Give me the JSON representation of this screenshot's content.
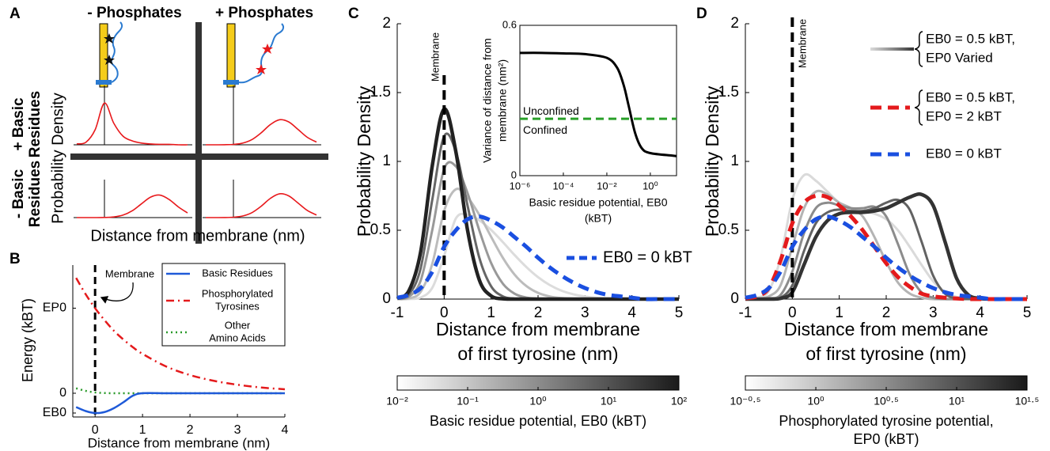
{
  "chart_data": [
    {
      "type": "line",
      "label": "A",
      "column_titles": [
        "- Phosphates",
        "+ Phosphates"
      ],
      "row_titles": [
        [
          "+ Basic",
          "Residues"
        ],
        [
          "- Basic",
          "Residues"
        ]
      ],
      "ylabel": "Probability Density",
      "xlabel": "Distance from membrane (nm)",
      "xlim": [
        -1.5,
        4.5
      ],
      "ylim": [
        0,
        1
      ],
      "vline": 0,
      "color": "#e8191c",
      "x": [
        -1.5,
        -1,
        -0.5,
        0,
        0.5,
        1,
        1.5,
        2,
        2.5,
        3,
        3.5,
        4,
        4.5
      ],
      "plots": [
        {
          "values": [
            0.02,
            0.06,
            0.35,
            0.96,
            0.5,
            0.2,
            0.09,
            0.04,
            0.02,
            0.01,
            0.01,
            0,
            0
          ]
        },
        {
          "values": [
            0,
            0,
            0.002,
            0.009,
            0.038,
            0.119,
            0.274,
            0.465,
            0.576,
            0.525,
            0.352,
            0.173,
            0.062
          ]
        },
        {
          "values": [
            0,
            0,
            0,
            0.003,
            0.015,
            0.056,
            0.155,
            0.315,
            0.47,
            0.517,
            0.417,
            0.246,
            0.107
          ]
        },
        {
          "values": [
            0,
            0,
            0.001,
            0.009,
            0.036,
            0.113,
            0.26,
            0.441,
            0.546,
            0.498,
            0.334,
            0.164,
            0.059
          ]
        }
      ]
    },
    {
      "type": "line",
      "label": "B",
      "ylabel": "Energy (kBT)",
      "xlabel": "Distance from membrane (nm)",
      "xlim": [
        -0.47,
        4
      ],
      "ylim": [
        -1.2,
        6.48
      ],
      "xticks": [
        0,
        1,
        2,
        3,
        4
      ],
      "yticks": [
        {
          "value": -1,
          "label": "EB0"
        },
        0,
        {
          "value": 4.3,
          "label": "EP0"
        }
      ],
      "vline": 0,
      "annotation": "Membrane",
      "x": [
        -0.4,
        -0.2,
        0,
        0.2,
        0.4,
        0.6,
        0.8,
        1,
        1.5,
        2,
        2.5,
        3,
        3.5,
        4
      ],
      "series": [
        {
          "name": [
            "Basic Residues"
          ],
          "color": "#1f5ad8",
          "linestyle": "solid",
          "values": [
            -0.7,
            -0.9,
            -1,
            -0.95,
            -0.75,
            -0.45,
            -0.12,
            0,
            0,
            0,
            0,
            0,
            0,
            0
          ]
        },
        {
          "name": [
            "Phosphorylated",
            "Tyrosines"
          ],
          "color": "#e41a1c",
          "linestyle": "dashdot",
          "values": [
            5.83,
            5.01,
            4.3,
            3.69,
            3.15,
            2.71,
            2.32,
            1.99,
            1.35,
            0.92,
            0.63,
            0.43,
            0.29,
            0.2
          ]
        },
        {
          "name": [
            "Other",
            "Amino Acids"
          ],
          "color": "#2a9a2a",
          "linestyle": "dotted",
          "values": [
            0.25,
            0.12,
            0.04,
            0.01,
            0,
            0,
            0,
            0,
            0,
            0,
            0,
            0,
            0,
            0
          ]
        }
      ]
    },
    {
      "type": "line",
      "label": "C",
      "ylabel": "Probability Density",
      "xlabel": [
        "Distance from membrane",
        "of first tyrosine (nm)"
      ],
      "xlim": [
        -1,
        5
      ],
      "ylim": [
        0,
        2
      ],
      "xticks": [
        -1,
        0,
        1,
        2,
        3,
        4,
        5
      ],
      "yticks": [
        0,
        0.5,
        1,
        1.5,
        2
      ],
      "vline": 0,
      "annotation": "Membrane",
      "x": [
        -1,
        -0.75,
        -0.5,
        -0.25,
        0,
        0.25,
        0.5,
        0.75,
        1,
        1.25,
        1.5,
        1.75,
        2,
        2.25,
        2.5,
        2.75,
        3,
        3.25,
        3.5,
        3.75,
        4,
        4.25,
        4.5,
        4.75,
        5
      ],
      "family": {
        "colors": [
          "#dcdcdc",
          "#bcbcbc",
          "#999999",
          "#666666",
          "#222222"
        ],
        "values": [
          [
            0,
            0.001,
            0.011,
            0.084,
            0.314,
            0.586,
            0.613,
            0.572,
            0.502,
            0.414,
            0.32,
            0.233,
            0.159,
            0.102,
            0.061,
            0.035,
            0.019,
            0.009,
            0.004,
            0.002,
            0.001,
            0,
            0,
            0,
            0
          ],
          [
            0,
            0.005,
            0.053,
            0.26,
            0.641,
            0.798,
            0.738,
            0.611,
            0.453,
            0.3,
            0.178,
            0.095,
            0.045,
            0.019,
            0.007,
            0.003,
            0.001,
            0,
            0,
            0,
            0,
            0,
            0,
            0,
            0
          ],
          [
            0.001,
            0.018,
            0.135,
            0.507,
            0.946,
            0.964,
            0.768,
            0.498,
            0.262,
            0.112,
            0.039,
            0.011,
            0.003,
            0.001,
            0,
            0,
            0,
            0,
            0,
            0,
            0,
            0,
            0,
            0,
            0
          ],
          [
            0.003,
            0.034,
            0.224,
            0.728,
            1.183,
            1.071,
            0.676,
            0.299,
            0.093,
            0.02,
            0.003,
            0,
            0,
            0,
            0,
            0,
            0,
            0,
            0,
            0,
            0,
            0,
            0,
            0,
            0
          ],
          [
            0.005,
            0.061,
            0.344,
            0.975,
            1.38,
            1.069,
            0.497,
            0.138,
            0.023,
            0.002,
            0,
            0,
            0,
            0,
            0,
            0,
            0,
            0,
            0,
            0,
            0,
            0,
            0,
            0,
            0
          ]
        ]
      },
      "series": [
        {
          "name": "EB0 = 0 kBT",
          "color": "#1a4fe0",
          "linestyle": "dashed",
          "values": [
            0.01,
            0.03,
            0.08,
            0.2,
            0.38,
            0.5,
            0.58,
            0.6,
            0.57,
            0.52,
            0.45,
            0.38,
            0.3,
            0.23,
            0.17,
            0.12,
            0.08,
            0.05,
            0.03,
            0.02,
            0.01,
            0,
            0,
            0,
            0
          ]
        }
      ],
      "inset": {
        "type": "line",
        "log_x": true,
        "xlim": [
          1e-06,
          16
        ],
        "ylim": [
          0,
          0.6
        ],
        "xticks": [
          {
            "value": 1e-06,
            "label": "10⁻⁶"
          },
          {
            "value": 0.0001,
            "label": "10⁻⁴"
          },
          {
            "value": 0.01,
            "label": "10⁻²"
          },
          {
            "value": 1,
            "label": "10⁰"
          }
        ],
        "yticks": [
          0,
          0.6
        ],
        "ylabel": [
          "Variance of distance from",
          "membrane (nm²)"
        ],
        "xlabel": [
          "Basic residue potential, EB0",
          "(kBT)"
        ],
        "x": [
          1e-06,
          1e-05,
          0.0001,
          0.001,
          0.01,
          0.03,
          0.06,
          0.1,
          0.2,
          0.4,
          1,
          10,
          16
        ],
        "values": [
          0.49,
          0.49,
          0.488,
          0.485,
          0.47,
          0.43,
          0.36,
          0.28,
          0.17,
          0.11,
          0.09,
          0.08,
          0.078
        ],
        "color": "#000000",
        "hline": {
          "value": 0.227,
          "color": "#2aa02a"
        },
        "annotations": [
          "Unconfined",
          "Confined"
        ]
      },
      "colorbar": {
        "log": true,
        "lim": [
          0.01,
          100
        ],
        "colormap": [
          "#ffffff",
          "#1a1a1a"
        ],
        "ticks": [
          {
            "value": 0.01,
            "label": "10⁻²"
          },
          {
            "value": 0.1,
            "label": "10⁻¹"
          },
          {
            "value": 1,
            "label": "10⁰"
          },
          {
            "value": 10,
            "label": "10¹"
          },
          {
            "value": 100,
            "label": "10²"
          }
        ],
        "label": [
          "Basic residue potential, EB0 (kBT)"
        ]
      }
    },
    {
      "type": "line",
      "label": "D",
      "ylabel": "Probability Density",
      "xlabel": [
        "Distance from membrane",
        "of first tyrosine (nm)"
      ],
      "xlim": [
        -1,
        5
      ],
      "ylim": [
        0,
        2
      ],
      "xticks": [
        -1,
        0,
        1,
        2,
        3,
        4,
        5
      ],
      "yticks": [
        0,
        0.5,
        1,
        1.5,
        2
      ],
      "vline": 0,
      "annotation": "Membrane",
      "x": [
        -1,
        -0.75,
        -0.5,
        -0.25,
        0,
        0.25,
        0.5,
        0.75,
        1,
        1.25,
        1.5,
        1.75,
        2,
        2.25,
        2.5,
        2.75,
        3,
        3.25,
        3.5,
        3.75,
        4,
        4.25,
        4.5,
        4.75,
        5
      ],
      "family": {
        "name": [
          "EB0 = 0.5 kBT,",
          "EP0 Varied"
        ],
        "colors": [
          "#dadada",
          "#b4b4b4",
          "#8c8c8c",
          "#626262",
          "#333333"
        ],
        "values": [
          [
            0.002,
            0.01,
            0.06,
            0.3,
            0.72,
            0.9,
            0.86,
            0.78,
            0.7,
            0.66,
            0.64,
            0.62,
            0.58,
            0.5,
            0.38,
            0.25,
            0.13,
            0.05,
            0.015,
            0.003,
            0,
            0,
            0,
            0,
            0
          ],
          [
            0,
            0.002,
            0.02,
            0.1,
            0.38,
            0.66,
            0.78,
            0.76,
            0.7,
            0.66,
            0.6,
            0.45,
            0.27,
            0.12,
            0.04,
            0.01,
            0,
            0,
            0,
            0,
            0,
            0,
            0,
            0,
            0
          ],
          [
            0,
            0,
            0.005,
            0.03,
            0.2,
            0.48,
            0.66,
            0.7,
            0.68,
            0.66,
            0.66,
            0.67,
            0.6,
            0.4,
            0.18,
            0.05,
            0.01,
            0,
            0,
            0,
            0,
            0,
            0,
            0,
            0
          ],
          [
            0,
            0,
            0,
            0.01,
            0.1,
            0.35,
            0.55,
            0.63,
            0.65,
            0.64,
            0.64,
            0.66,
            0.7,
            0.72,
            0.65,
            0.42,
            0.17,
            0.04,
            0.005,
            0,
            0,
            0,
            0,
            0,
            0
          ],
          [
            0,
            0,
            0,
            0.005,
            0.05,
            0.25,
            0.45,
            0.57,
            0.62,
            0.63,
            0.63,
            0.64,
            0.66,
            0.7,
            0.74,
            0.76,
            0.68,
            0.42,
            0.15,
            0.03,
            0.005,
            0,
            0,
            0,
            0
          ]
        ]
      },
      "series": [
        {
          "name": [
            "EB0 = 0.5 kBT,",
            "EP0 = 2 kBT"
          ],
          "color": "#e41a1c",
          "linestyle": "dashed",
          "values": [
            0.005,
            0.02,
            0.08,
            0.28,
            0.55,
            0.7,
            0.75,
            0.74,
            0.68,
            0.6,
            0.5,
            0.38,
            0.26,
            0.16,
            0.09,
            0.04,
            0.02,
            0.01,
            0.004,
            0,
            0,
            0,
            0,
            0,
            0
          ]
        },
        {
          "name": [
            "EB0 = 0 kBT"
          ],
          "color": "#1a4fe0",
          "linestyle": "dashed",
          "values": [
            0.01,
            0.03,
            0.08,
            0.2,
            0.38,
            0.5,
            0.58,
            0.6,
            0.57,
            0.52,
            0.45,
            0.38,
            0.3,
            0.23,
            0.17,
            0.12,
            0.08,
            0.05,
            0.03,
            0.02,
            0.01,
            0,
            0,
            0,
            0
          ]
        }
      ],
      "colorbar": {
        "log": true,
        "lim": [
          0.316,
          31.62
        ],
        "colormap": [
          "#ffffff",
          "#1a1a1a"
        ],
        "ticks": [
          {
            "value": 0.316,
            "label": "10⁻⁰·⁵"
          },
          {
            "value": 1,
            "label": "10⁰"
          },
          {
            "value": 3.162,
            "label": "10⁰·⁵"
          },
          {
            "value": 10,
            "label": "10¹"
          },
          {
            "value": 31.62,
            "label": "10¹·⁵"
          }
        ],
        "label": [
          "Phosphorylated tyrosine potential,",
          "EP0 (kBT)"
        ]
      }
    }
  ]
}
